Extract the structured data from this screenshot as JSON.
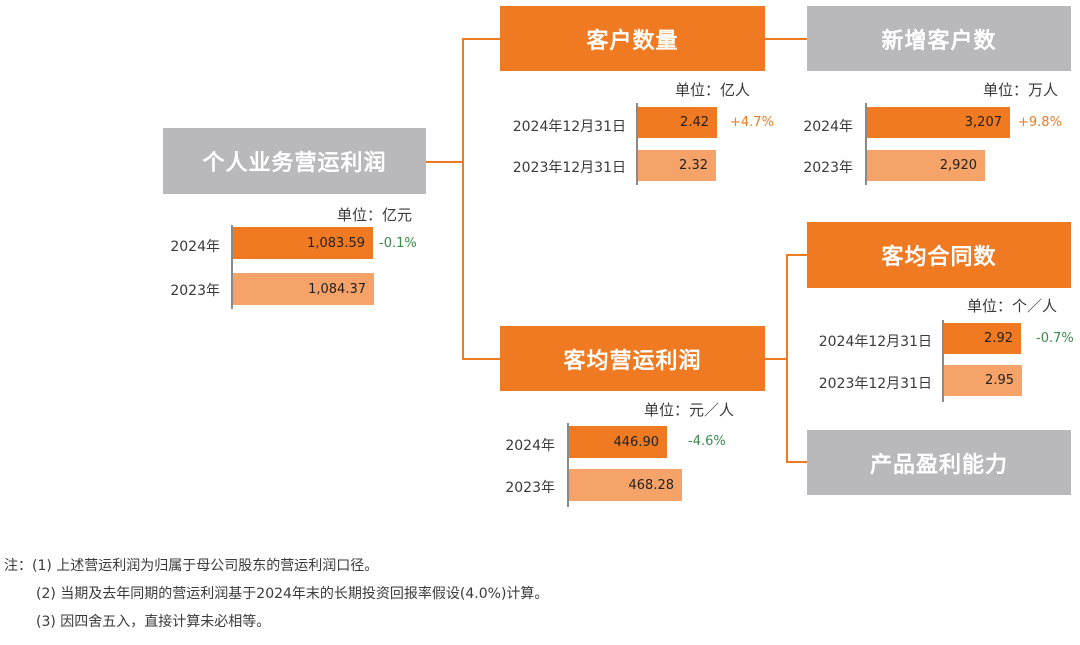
{
  "root": {
    "title": "个人业务营运利润",
    "unit": "单位：亿元",
    "rows": [
      {
        "label": "2024年",
        "value": "1,083.59",
        "change": "-0.1%"
      },
      {
        "label": "2023年",
        "value": "1,084.37"
      }
    ]
  },
  "customers": {
    "title": "客户数量",
    "unit": "单位：亿人",
    "rows": [
      {
        "label": "2024年12月31日",
        "value": "2.42",
        "change": "+4.7%"
      },
      {
        "label": "2023年12月31日",
        "value": "2.32"
      }
    ]
  },
  "new_customers": {
    "title": "新增客户数",
    "unit": "单位：万人",
    "rows": [
      {
        "label": "2024年",
        "value": "3,207",
        "change": "+9.8%"
      },
      {
        "label": "2023年",
        "value": "2,920"
      }
    ]
  },
  "per_customer_profit": {
    "title": "客均营运利润",
    "unit": "单位：元／人",
    "rows": [
      {
        "label": "2024年",
        "value": "446.90",
        "change": "-4.6%"
      },
      {
        "label": "2023年",
        "value": "468.28"
      }
    ]
  },
  "contracts_per_customer": {
    "title": "客均合同数",
    "unit": "单位：个／人",
    "rows": [
      {
        "label": "2024年12月31日",
        "value": "2.92",
        "change": "-0.7%"
      },
      {
        "label": "2023年12月31日",
        "value": "2.95"
      }
    ]
  },
  "product_profitability": {
    "title": "产品盈利能力"
  },
  "notes": [
    "注：(1)  上述营运利润为归属于母公司股东的营运利润口径。",
    "(2)  当期及去年同期的营运利润基于2024年末的长期投资回报率假设(4.0%)计算。",
    "(3)  因四舍五入，直接计算未必相等。"
  ],
  "colors": {
    "accent": "#f07a22",
    "accent_light": "#f6a36a",
    "gray_box": "#b9b9bb",
    "negative_change": "#3a8a4a"
  }
}
